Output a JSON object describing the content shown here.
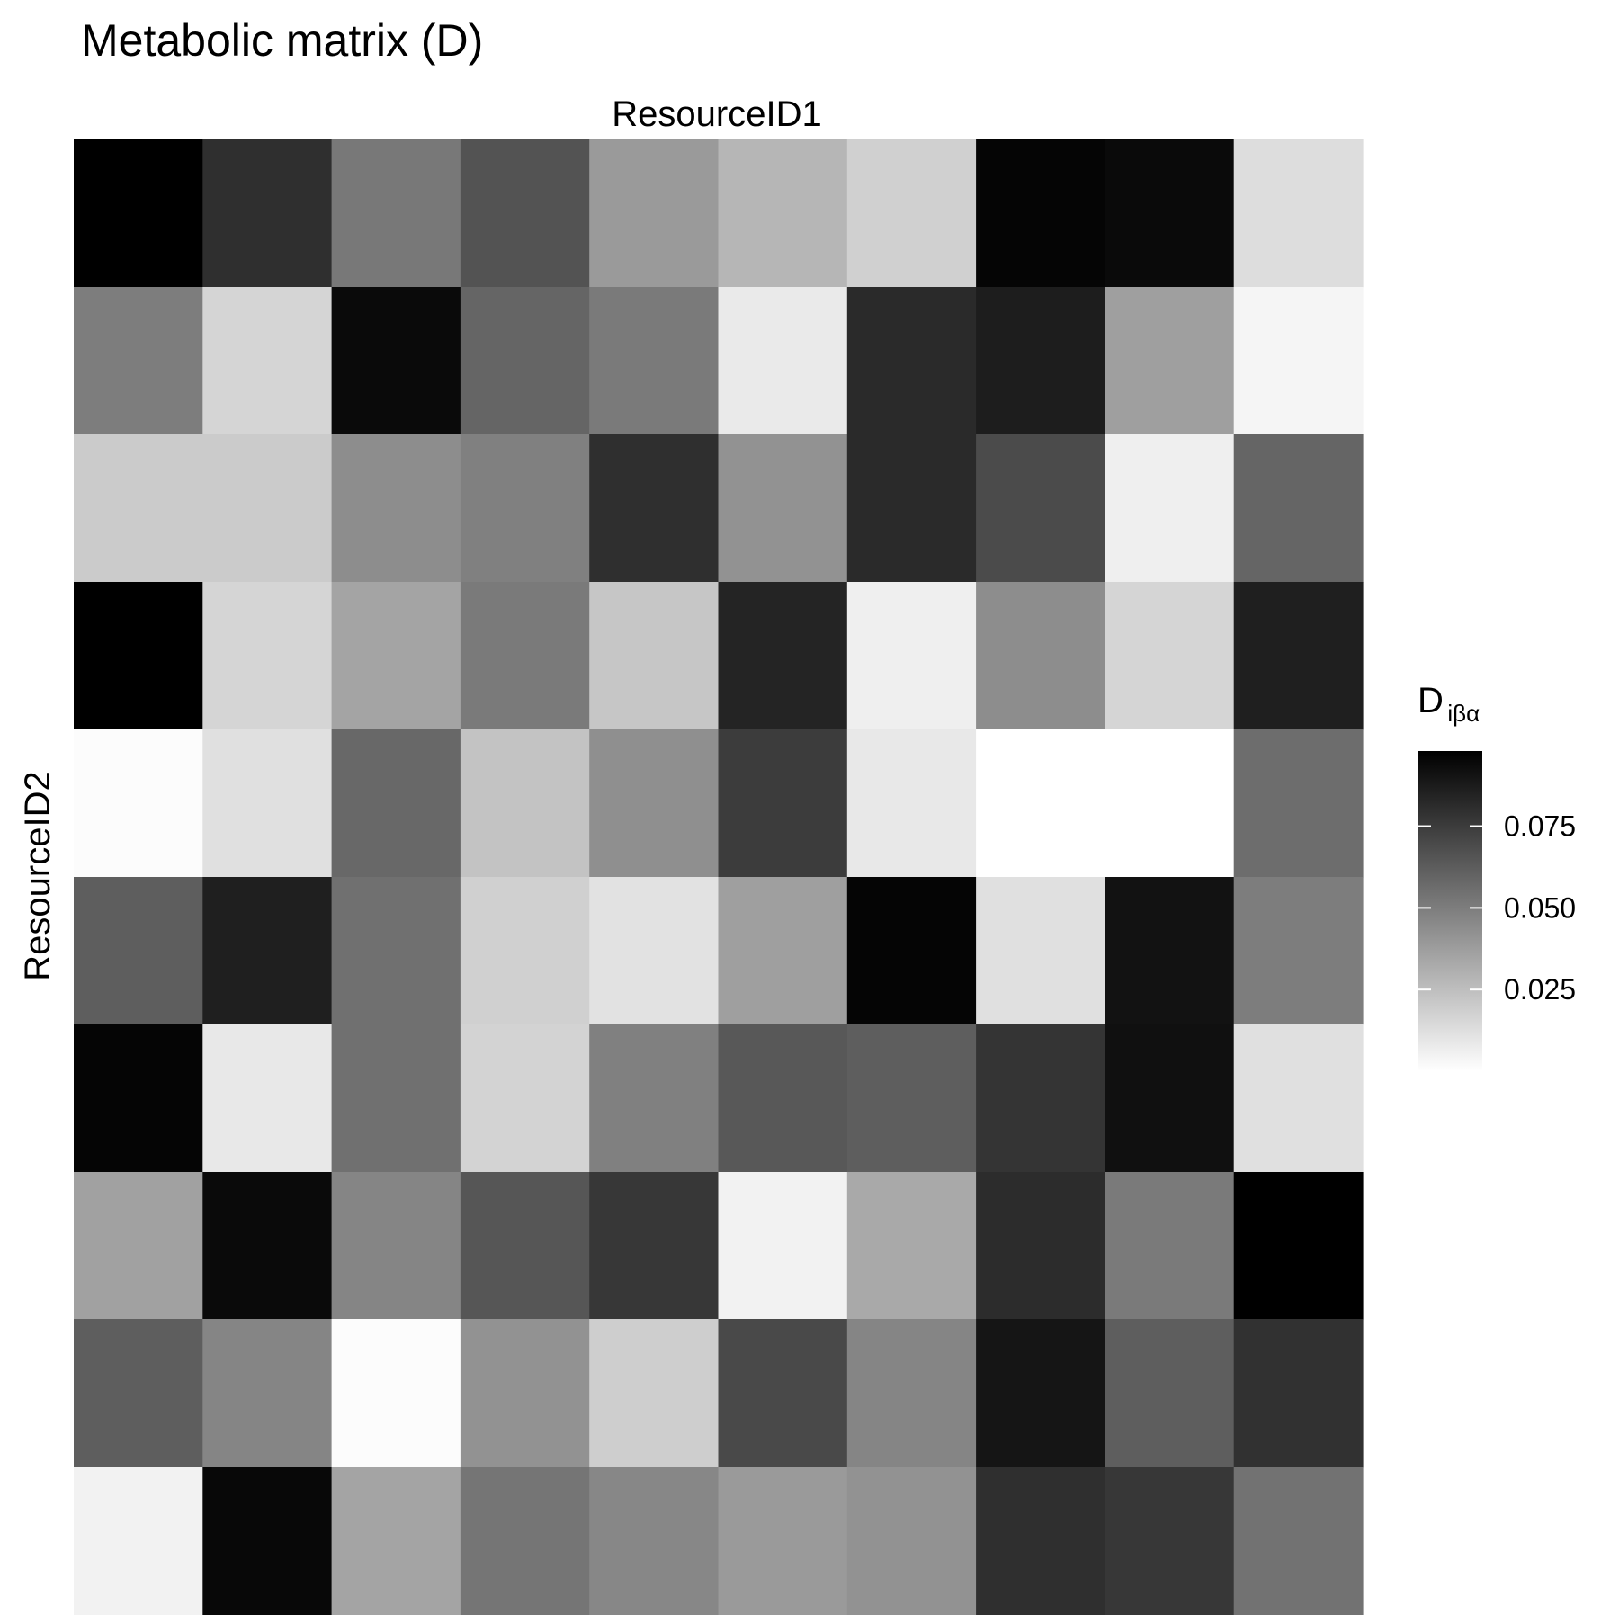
{
  "chart_data": {
    "type": "heatmap",
    "title": "Metabolic matrix (D)",
    "xlabel": "ResourceID1",
    "ylabel": "ResourceID2",
    "legend": {
      "title_main": "D",
      "title_subscript": "iβα",
      "ticks": [
        0.025,
        0.05,
        0.075
      ],
      "tick_labels": [
        "0.025",
        "0.050",
        "0.075"
      ],
      "range": [
        0.0,
        0.098
      ],
      "placement": "right",
      "low_color": "#ffffff",
      "high_color": "#000000"
    },
    "rows": 10,
    "cols": 10,
    "values": [
      [
        0.098,
        0.08,
        0.052,
        0.066,
        0.039,
        0.028,
        0.018,
        0.096,
        0.094,
        0.013
      ],
      [
        0.05,
        0.016,
        0.094,
        0.059,
        0.051,
        0.008,
        0.082,
        0.087,
        0.037,
        0.004
      ],
      [
        0.02,
        0.02,
        0.044,
        0.049,
        0.08,
        0.042,
        0.082,
        0.069,
        0.006,
        0.059
      ],
      [
        0.098,
        0.016,
        0.035,
        0.051,
        0.022,
        0.084,
        0.006,
        0.044,
        0.016,
        0.086
      ],
      [
        0.001,
        0.012,
        0.058,
        0.023,
        0.043,
        0.075,
        0.009,
        0.0,
        0.0,
        0.056
      ],
      [
        0.062,
        0.086,
        0.055,
        0.018,
        0.011,
        0.037,
        0.096,
        0.012,
        0.091,
        0.05
      ],
      [
        0.096,
        0.009,
        0.055,
        0.017,
        0.049,
        0.064,
        0.062,
        0.078,
        0.092,
        0.012
      ],
      [
        0.036,
        0.094,
        0.047,
        0.065,
        0.077,
        0.005,
        0.033,
        0.081,
        0.051,
        0.098
      ],
      [
        0.062,
        0.047,
        0.001,
        0.042,
        0.019,
        0.07,
        0.047,
        0.09,
        0.062,
        0.079
      ],
      [
        0.005,
        0.095,
        0.035,
        0.053,
        0.046,
        0.039,
        0.042,
        0.08,
        0.077,
        0.054
      ]
    ]
  }
}
